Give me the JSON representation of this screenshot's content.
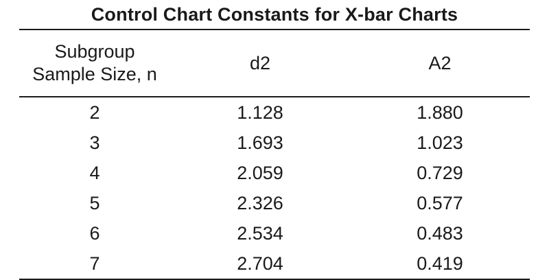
{
  "title": "Control Chart Constants for X-bar Charts",
  "headers": {
    "n_line1": "Subgroup",
    "n_line2": "Sample Size, n",
    "d2": "d2",
    "a2": "A2"
  },
  "rows": [
    {
      "n": "2",
      "d2": "1.128",
      "a2": "1.880"
    },
    {
      "n": "3",
      "d2": "1.693",
      "a2": "1.023"
    },
    {
      "n": "4",
      "d2": "2.059",
      "a2": "0.729"
    },
    {
      "n": "5",
      "d2": "2.326",
      "a2": "0.577"
    },
    {
      "n": "6",
      "d2": "2.534",
      "a2": "0.483"
    },
    {
      "n": "7",
      "d2": "2.704",
      "a2": "0.419"
    }
  ],
  "chart_data": {
    "type": "table",
    "title": "Control Chart Constants for X-bar Charts",
    "columns": [
      "Subgroup Sample Size, n",
      "d2",
      "A2"
    ],
    "rows": [
      [
        2,
        1.128,
        1.88
      ],
      [
        3,
        1.693,
        1.023
      ],
      [
        4,
        2.059,
        0.729
      ],
      [
        5,
        2.326,
        0.577
      ],
      [
        6,
        2.534,
        0.483
      ],
      [
        7,
        2.704,
        0.419
      ]
    ]
  }
}
